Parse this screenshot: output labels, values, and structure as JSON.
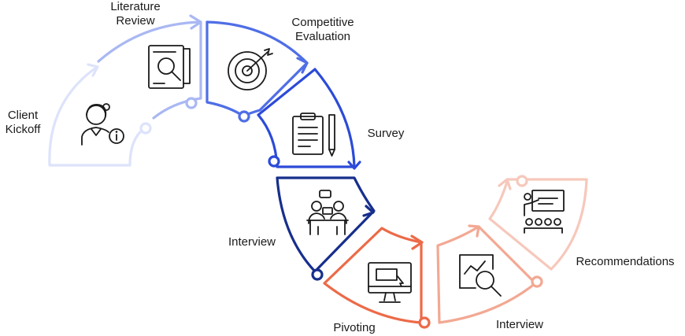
{
  "colors": {
    "client_kickoff": "#dde3fb",
    "literature_review": "#a9b8f3",
    "competitive_evaluation": "#4f6ee6",
    "survey": "#2c4bd8",
    "interview_1": "#172f8c",
    "pivoting": "#ec6a48",
    "interview_2": "#f3a893",
    "recommendations": "#f6c8bb"
  },
  "steps": {
    "client_kickoff": {
      "line1": "Client",
      "line2": "Kickoff",
      "icon": "user-info-icon"
    },
    "literature_review": {
      "line1": "Literature",
      "line2": "Review",
      "icon": "document-search-icon"
    },
    "competitive_evaluation": {
      "line1": "Competitive",
      "line2": "Evaluation",
      "icon": "target-icon"
    },
    "survey": {
      "line1": "Survey",
      "icon": "clipboard-pen-icon"
    },
    "interview_1": {
      "line1": "Interview",
      "icon": "meeting-icon"
    },
    "pivoting": {
      "line1": "Pivoting",
      "icon": "monitor-icon"
    },
    "interview_2": {
      "line1": "Interview",
      "icon": "analytics-search-icon"
    },
    "recommendations": {
      "line1": "Recommendations",
      "icon": "presentation-icon"
    }
  }
}
